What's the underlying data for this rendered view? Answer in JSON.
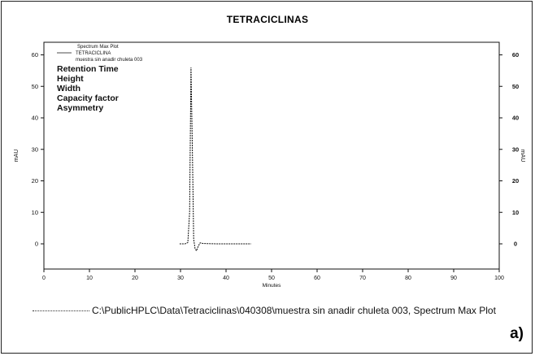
{
  "chart_data": {
    "type": "line",
    "title": "TETRACICLINAS",
    "xlabel": "Minutes",
    "ylabel": "mAU",
    "y2label": "mAU",
    "xlim": [
      0,
      100
    ],
    "ylim": [
      -8,
      64
    ],
    "y2lim": [
      -8,
      64
    ],
    "x_ticks": [
      0,
      10,
      20,
      30,
      40,
      50,
      60,
      70,
      80,
      90,
      100
    ],
    "y_ticks": [
      0,
      10,
      20,
      30,
      40,
      50,
      60
    ],
    "y2_ticks": [
      0,
      10,
      20,
      30,
      40,
      50,
      60
    ],
    "legend": {
      "placement": "top-left",
      "entries": [
        "Spectrum Max Plot",
        "TETRACICLINA",
        "muestra sin anadir chuleta  003"
      ]
    },
    "parameters": [
      "Retention Time",
      "Height",
      "Width",
      "Capacity factor",
      "Asymmetry"
    ],
    "series": [
      {
        "name": "TETRACICLINA",
        "x": [
          29.8,
          31.0,
          31.6,
          32.0,
          32.3,
          32.6,
          32.9,
          33.2,
          33.5,
          33.9,
          34.3,
          35.0,
          38.0,
          42.0,
          45.5
        ],
        "y": [
          0.0,
          0.0,
          0.4,
          10.0,
          56.0,
          30.0,
          1.5,
          -1.5,
          -2.2,
          -0.8,
          0.3,
          0.1,
          0.0,
          0.0,
          0.0
        ]
      }
    ]
  },
  "footer": {
    "text": "C:\\PublicHPLC\\Data\\Tetraciclinas\\040308\\muestra sin anadir chuleta  003, Spectrum Max Plot"
  },
  "panel_label": "a)"
}
